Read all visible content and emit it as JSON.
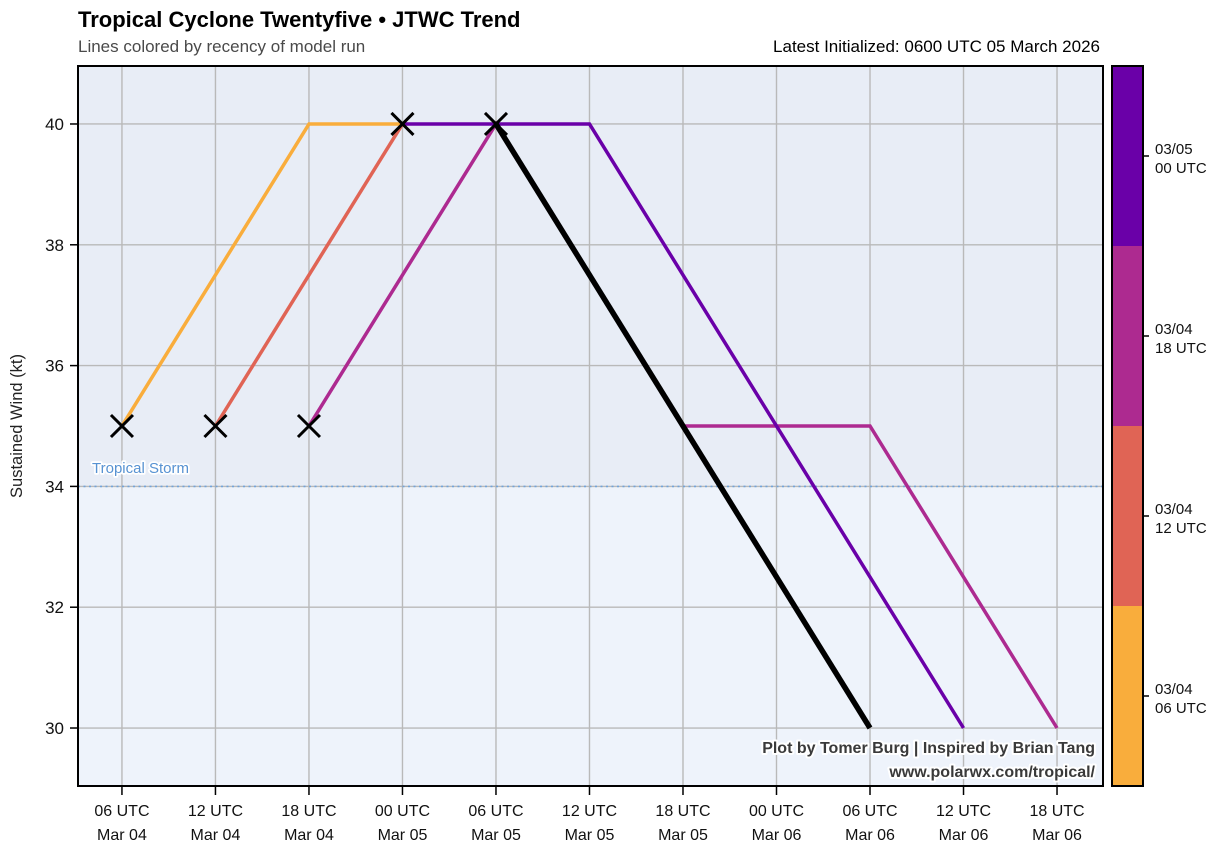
{
  "header": {
    "title": "Tropical Cyclone Twentyfive • JTWC Trend",
    "subtitle": "Lines colored by recency of model run",
    "latest_initialized": "Latest Initialized: 0600 UTC 05 March 2026"
  },
  "chart_data": {
    "type": "line",
    "title": "Tropical Cyclone Twentyfive • JTWC Trend",
    "subtitle": "Lines colored by recency of model run",
    "xlabel": "",
    "ylabel": "Sustained Wind (kt)",
    "x_unit": "hours since 00 UTC 04 March 2026",
    "xlim": [
      3.18,
      68.95
    ],
    "ylim": [
      29.04,
      40.96
    ],
    "grid": true,
    "yticks": [
      30,
      32,
      34,
      36,
      38,
      40
    ],
    "xticks": [
      {
        "hour": 6,
        "label": [
          "06 UTC",
          "Mar 04"
        ]
      },
      {
        "hour": 12,
        "label": [
          "12 UTC",
          "Mar 04"
        ]
      },
      {
        "hour": 18,
        "label": [
          "18 UTC",
          "Mar 04"
        ]
      },
      {
        "hour": 24,
        "label": [
          "00 UTC",
          "Mar 05"
        ]
      },
      {
        "hour": 30,
        "label": [
          "06 UTC",
          "Mar 05"
        ]
      },
      {
        "hour": 36,
        "label": [
          "12 UTC",
          "Mar 05"
        ]
      },
      {
        "hour": 42,
        "label": [
          "18 UTC",
          "Mar 05"
        ]
      },
      {
        "hour": 48,
        "label": [
          "00 UTC",
          "Mar 06"
        ]
      },
      {
        "hour": 54,
        "label": [
          "06 UTC",
          "Mar 06"
        ]
      },
      {
        "hour": 60,
        "label": [
          "12 UTC",
          "Mar 06"
        ]
      },
      {
        "hour": 66,
        "label": [
          "18 UTC",
          "Mar 06"
        ]
      }
    ],
    "series": [
      {
        "name": "03/04 06 UTC",
        "color": "#f9ad3c",
        "width": 3.5,
        "points": [
          [
            6,
            35
          ],
          [
            18,
            40
          ],
          [
            24,
            40
          ]
        ],
        "start_marker": [
          6,
          35
        ]
      },
      {
        "name": "03/04 12 UTC",
        "color": "#e06455",
        "width": 3.5,
        "points": [
          [
            12,
            35
          ],
          [
            24,
            40
          ]
        ],
        "start_marker": [
          12,
          35
        ]
      },
      {
        "name": "03/04 18 UTC",
        "color": "#ad2a90",
        "width": 3.5,
        "points": [
          [
            18,
            35
          ],
          [
            30,
            40
          ],
          [
            42,
            35
          ],
          [
            54,
            35
          ],
          [
            66,
            30
          ]
        ],
        "start_marker": [
          18,
          35
        ]
      },
      {
        "name": "03/05 00 UTC",
        "color": "#6a00a8",
        "width": 3.5,
        "points": [
          [
            24,
            40
          ],
          [
            36,
            40
          ],
          [
            60,
            30
          ]
        ],
        "start_marker": [
          24,
          40
        ]
      },
      {
        "name": "03/05 06 UTC latest",
        "color": "#000000",
        "width": 5.5,
        "points": [
          [
            30,
            40
          ],
          [
            54,
            30
          ]
        ],
        "start_marker": [
          30,
          40
        ]
      }
    ],
    "threshold_line": {
      "value": 34,
      "label": "Tropical Storm",
      "color": "#72a3d9",
      "label_color": "#5792d2"
    },
    "background": {
      "above_threshold": "#e8edf6",
      "below_threshold": "#eef3fb"
    },
    "colorbar": {
      "segments_top_to_bottom": [
        {
          "label": [
            "03/05",
            "00 UTC"
          ],
          "color": "#6a00a8"
        },
        {
          "label": [
            "03/04",
            "18 UTC"
          ],
          "color": "#ad2a90"
        },
        {
          "label": [
            "03/04",
            "12 UTC"
          ],
          "color": "#e06455"
        },
        {
          "label": [
            "03/04",
            "06 UTC"
          ],
          "color": "#f9ad3c"
        }
      ]
    },
    "credits": [
      "Plot by Tomer Burg | Inspired by Brian Tang",
      "www.polarwx.com/tropical/"
    ]
  }
}
